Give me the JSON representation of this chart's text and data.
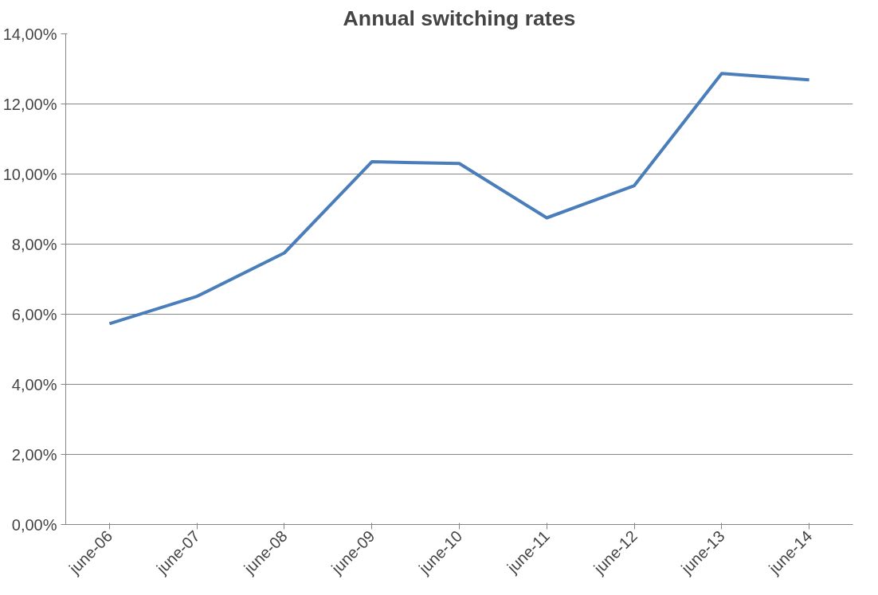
{
  "chart_data": {
    "type": "line",
    "title": "Annual switching rates",
    "categories": [
      "june-06",
      "june-07",
      "june-08",
      "june-09",
      "june-10",
      "june-11",
      "june-12",
      "june-13",
      "june-14"
    ],
    "series": [
      {
        "color": "#4a7ebb",
        "values": [
          5.73,
          6.51,
          7.75,
          10.35,
          10.3,
          8.75,
          9.67,
          12.87,
          12.69
        ]
      }
    ],
    "ylim": [
      0,
      14
    ],
    "yticks": [
      {
        "value": 0,
        "label": "0,00%"
      },
      {
        "value": 2,
        "label": "2,00%"
      },
      {
        "value": 4,
        "label": "4,00%"
      },
      {
        "value": 6,
        "label": "6,00%"
      },
      {
        "value": 8,
        "label": "8,00%"
      },
      {
        "value": 10,
        "label": "10,00%"
      },
      {
        "value": 12,
        "label": "12,00%"
      },
      {
        "value": 14,
        "label": "14,00%"
      }
    ],
    "grid": "y",
    "marker": "none",
    "line_style": "solid"
  }
}
